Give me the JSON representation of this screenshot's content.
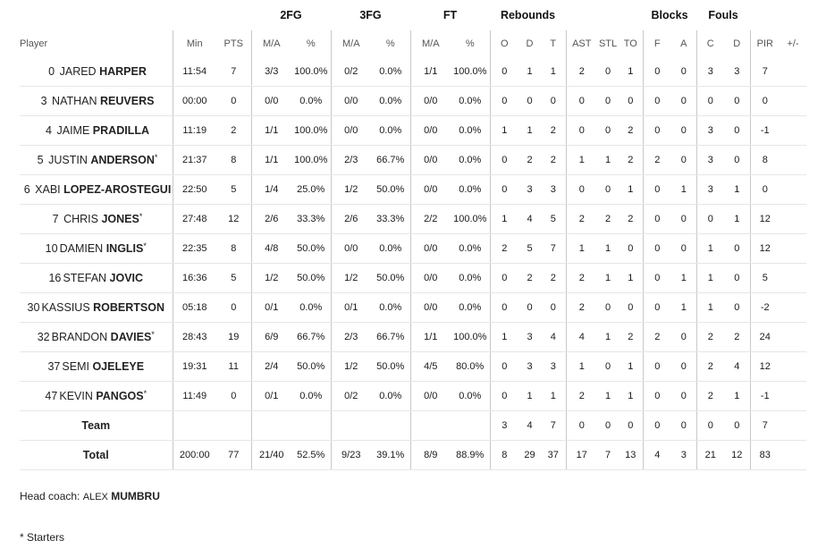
{
  "groups": {
    "fg2": "2FG",
    "fg3": "3FG",
    "ft": "FT",
    "rebounds": "Rebounds",
    "blocks": "Blocks",
    "fouls": "Fouls"
  },
  "columns": {
    "player": "Player",
    "min": "Min",
    "pts": "PTS",
    "fg2_ma": "M/A",
    "fg2_pct": "%",
    "fg3_ma": "M/A",
    "fg3_pct": "%",
    "ft_ma": "M/A",
    "ft_pct": "%",
    "reb_o": "O",
    "reb_d": "D",
    "reb_t": "T",
    "ast": "AST",
    "stl": "STL",
    "to": "TO",
    "blk_f": "F",
    "blk_a": "A",
    "foul_c": "C",
    "foul_d": "D",
    "pir": "PIR",
    "plusminus": "+/-"
  },
  "players": [
    {
      "num": "0",
      "first": "JARED",
      "last": "HARPER",
      "star": "",
      "min": "11:54",
      "pts": "7",
      "fg2_ma": "3/3",
      "fg2_pct": "100.0%",
      "fg3_ma": "0/2",
      "fg3_pct": "0.0%",
      "ft_ma": "1/1",
      "ft_pct": "100.0%",
      "reb_o": "0",
      "reb_d": "1",
      "reb_t": "1",
      "ast": "2",
      "stl": "0",
      "to": "1",
      "blk_f": "0",
      "blk_a": "0",
      "foul_c": "3",
      "foul_d": "3",
      "pir": "7",
      "pm": ""
    },
    {
      "num": "3",
      "first": "NATHAN",
      "last": "REUVERS",
      "star": "",
      "min": "00:00",
      "pts": "0",
      "fg2_ma": "0/0",
      "fg2_pct": "0.0%",
      "fg3_ma": "0/0",
      "fg3_pct": "0.0%",
      "ft_ma": "0/0",
      "ft_pct": "0.0%",
      "reb_o": "0",
      "reb_d": "0",
      "reb_t": "0",
      "ast": "0",
      "stl": "0",
      "to": "0",
      "blk_f": "0",
      "blk_a": "0",
      "foul_c": "0",
      "foul_d": "0",
      "pir": "0",
      "pm": ""
    },
    {
      "num": "4",
      "first": "JAIME",
      "last": "PRADILLA",
      "star": "",
      "min": "11:19",
      "pts": "2",
      "fg2_ma": "1/1",
      "fg2_pct": "100.0%",
      "fg3_ma": "0/0",
      "fg3_pct": "0.0%",
      "ft_ma": "0/0",
      "ft_pct": "0.0%",
      "reb_o": "1",
      "reb_d": "1",
      "reb_t": "2",
      "ast": "0",
      "stl": "0",
      "to": "2",
      "blk_f": "0",
      "blk_a": "0",
      "foul_c": "3",
      "foul_d": "0",
      "pir": "-1",
      "pm": ""
    },
    {
      "num": "5",
      "first": "JUSTIN",
      "last": "ANDERSON",
      "star": "*",
      "min": "21:37",
      "pts": "8",
      "fg2_ma": "1/1",
      "fg2_pct": "100.0%",
      "fg3_ma": "2/3",
      "fg3_pct": "66.7%",
      "ft_ma": "0/0",
      "ft_pct": "0.0%",
      "reb_o": "0",
      "reb_d": "2",
      "reb_t": "2",
      "ast": "1",
      "stl": "1",
      "to": "2",
      "blk_f": "2",
      "blk_a": "0",
      "foul_c": "3",
      "foul_d": "0",
      "pir": "8",
      "pm": ""
    },
    {
      "num": "6",
      "first": "XABI",
      "last": "LOPEZ-AROSTEGUI",
      "star": "",
      "min": "22:50",
      "pts": "5",
      "fg2_ma": "1/4",
      "fg2_pct": "25.0%",
      "fg3_ma": "1/2",
      "fg3_pct": "50.0%",
      "ft_ma": "0/0",
      "ft_pct": "0.0%",
      "reb_o": "0",
      "reb_d": "3",
      "reb_t": "3",
      "ast": "0",
      "stl": "0",
      "to": "1",
      "blk_f": "0",
      "blk_a": "1",
      "foul_c": "3",
      "foul_d": "1",
      "pir": "0",
      "pm": ""
    },
    {
      "num": "7",
      "first": "CHRIS",
      "last": "JONES",
      "star": "*",
      "min": "27:48",
      "pts": "12",
      "fg2_ma": "2/6",
      "fg2_pct": "33.3%",
      "fg3_ma": "2/6",
      "fg3_pct": "33.3%",
      "ft_ma": "2/2",
      "ft_pct": "100.0%",
      "reb_o": "1",
      "reb_d": "4",
      "reb_t": "5",
      "ast": "2",
      "stl": "2",
      "to": "2",
      "blk_f": "0",
      "blk_a": "0",
      "foul_c": "0",
      "foul_d": "1",
      "pir": "12",
      "pm": ""
    },
    {
      "num": "10",
      "first": "DAMIEN",
      "last": "INGLIS",
      "star": "*",
      "min": "22:35",
      "pts": "8",
      "fg2_ma": "4/8",
      "fg2_pct": "50.0%",
      "fg3_ma": "0/0",
      "fg3_pct": "0.0%",
      "ft_ma": "0/0",
      "ft_pct": "0.0%",
      "reb_o": "2",
      "reb_d": "5",
      "reb_t": "7",
      "ast": "1",
      "stl": "1",
      "to": "0",
      "blk_f": "0",
      "blk_a": "0",
      "foul_c": "1",
      "foul_d": "0",
      "pir": "12",
      "pm": ""
    },
    {
      "num": "16",
      "first": "STEFAN",
      "last": "JOVIC",
      "star": "",
      "min": "16:36",
      "pts": "5",
      "fg2_ma": "1/2",
      "fg2_pct": "50.0%",
      "fg3_ma": "1/2",
      "fg3_pct": "50.0%",
      "ft_ma": "0/0",
      "ft_pct": "0.0%",
      "reb_o": "0",
      "reb_d": "2",
      "reb_t": "2",
      "ast": "2",
      "stl": "1",
      "to": "1",
      "blk_f": "0",
      "blk_a": "1",
      "foul_c": "1",
      "foul_d": "0",
      "pir": "5",
      "pm": ""
    },
    {
      "num": "30",
      "first": "KASSIUS",
      "last": "ROBERTSON",
      "star": "",
      "min": "05:18",
      "pts": "0",
      "fg2_ma": "0/1",
      "fg2_pct": "0.0%",
      "fg3_ma": "0/1",
      "fg3_pct": "0.0%",
      "ft_ma": "0/0",
      "ft_pct": "0.0%",
      "reb_o": "0",
      "reb_d": "0",
      "reb_t": "0",
      "ast": "2",
      "stl": "0",
      "to": "0",
      "blk_f": "0",
      "blk_a": "1",
      "foul_c": "1",
      "foul_d": "0",
      "pir": "-2",
      "pm": ""
    },
    {
      "num": "32",
      "first": "BRANDON",
      "last": "DAVIES",
      "star": "*",
      "min": "28:43",
      "pts": "19",
      "fg2_ma": "6/9",
      "fg2_pct": "66.7%",
      "fg3_ma": "2/3",
      "fg3_pct": "66.7%",
      "ft_ma": "1/1",
      "ft_pct": "100.0%",
      "reb_o": "1",
      "reb_d": "3",
      "reb_t": "4",
      "ast": "4",
      "stl": "1",
      "to": "2",
      "blk_f": "2",
      "blk_a": "0",
      "foul_c": "2",
      "foul_d": "2",
      "pir": "24",
      "pm": ""
    },
    {
      "num": "37",
      "first": "SEMI",
      "last": "OJELEYE",
      "star": "",
      "min": "19:31",
      "pts": "11",
      "fg2_ma": "2/4",
      "fg2_pct": "50.0%",
      "fg3_ma": "1/2",
      "fg3_pct": "50.0%",
      "ft_ma": "4/5",
      "ft_pct": "80.0%",
      "reb_o": "0",
      "reb_d": "3",
      "reb_t": "3",
      "ast": "1",
      "stl": "0",
      "to": "1",
      "blk_f": "0",
      "blk_a": "0",
      "foul_c": "2",
      "foul_d": "4",
      "pir": "12",
      "pm": ""
    },
    {
      "num": "47",
      "first": "KEVIN",
      "last": "PANGOS",
      "star": "*",
      "min": "11:49",
      "pts": "0",
      "fg2_ma": "0/1",
      "fg2_pct": "0.0%",
      "fg3_ma": "0/2",
      "fg3_pct": "0.0%",
      "ft_ma": "0/0",
      "ft_pct": "0.0%",
      "reb_o": "0",
      "reb_d": "1",
      "reb_t": "1",
      "ast": "2",
      "stl": "1",
      "to": "1",
      "blk_f": "0",
      "blk_a": "0",
      "foul_c": "2",
      "foul_d": "1",
      "pir": "-1",
      "pm": ""
    }
  ],
  "team_row": {
    "label": "Team",
    "min": "",
    "pts": "",
    "fg2_ma": "",
    "fg2_pct": "",
    "fg3_ma": "",
    "fg3_pct": "",
    "ft_ma": "",
    "ft_pct": "",
    "reb_o": "3",
    "reb_d": "4",
    "reb_t": "7",
    "ast": "0",
    "stl": "0",
    "to": "0",
    "blk_f": "0",
    "blk_a": "0",
    "foul_c": "0",
    "foul_d": "0",
    "pir": "7",
    "pm": ""
  },
  "total_row": {
    "label": "Total",
    "min": "200:00",
    "pts": "77",
    "fg2_ma": "21/40",
    "fg2_pct": "52.5%",
    "fg3_ma": "9/23",
    "fg3_pct": "39.1%",
    "ft_ma": "8/9",
    "ft_pct": "88.9%",
    "reb_o": "8",
    "reb_d": "29",
    "reb_t": "37",
    "ast": "17",
    "stl": "7",
    "to": "13",
    "blk_f": "4",
    "blk_a": "3",
    "foul_c": "21",
    "foul_d": "12",
    "pir": "83",
    "pm": ""
  },
  "footer": {
    "coach_label": "Head coach:",
    "coach_first": "ALEX",
    "coach_last": "MUMBRU",
    "starters_note": "* Starters"
  }
}
